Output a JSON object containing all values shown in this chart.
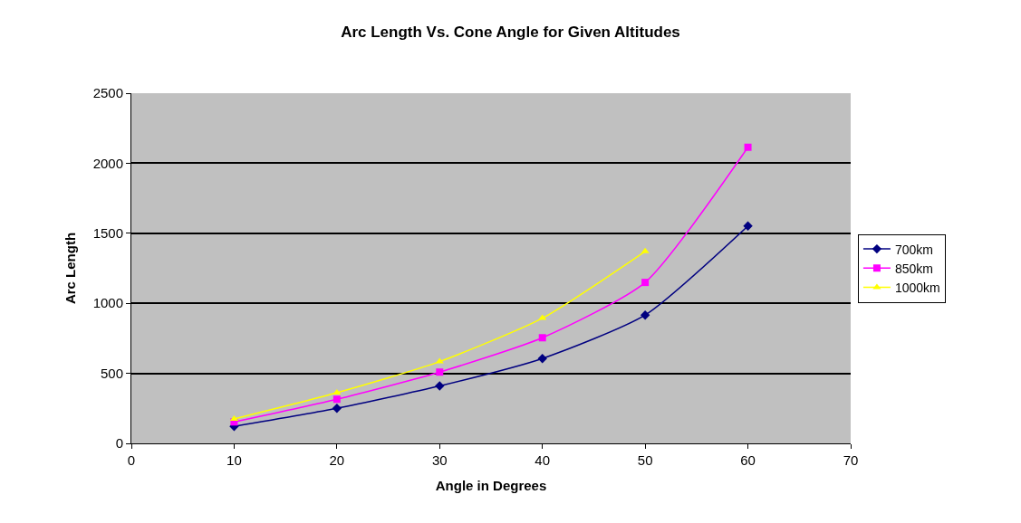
{
  "chart_data": {
    "type": "line",
    "title": "Arc Length Vs. Cone Angle for Given Altitudes",
    "xlabel": "Angle in Degrees",
    "ylabel": "Arc Length",
    "x": [
      10,
      20,
      30,
      40,
      50,
      60
    ],
    "series": [
      {
        "name": "700km",
        "color": "#000080",
        "marker": "diamond",
        "values": [
          121,
          250,
          410,
          606,
          916,
          1552
        ]
      },
      {
        "name": "850km",
        "color": "#ff00ff",
        "marker": "square",
        "values": [
          153,
          315,
          509,
          754,
          1149,
          2114
        ]
      },
      {
        "name": "1000km",
        "color": "#ffff00",
        "marker": "triangle",
        "values": [
          175,
          362,
          584,
          894,
          1371,
          null
        ]
      }
    ],
    "xlim": [
      0,
      70
    ],
    "xticks": [
      0,
      10,
      20,
      30,
      40,
      50,
      60,
      70
    ],
    "ylim": [
      0,
      2500
    ],
    "yticks": [
      0,
      500,
      1000,
      1500,
      2000,
      2500
    ],
    "grid": "y",
    "legend": "right"
  }
}
